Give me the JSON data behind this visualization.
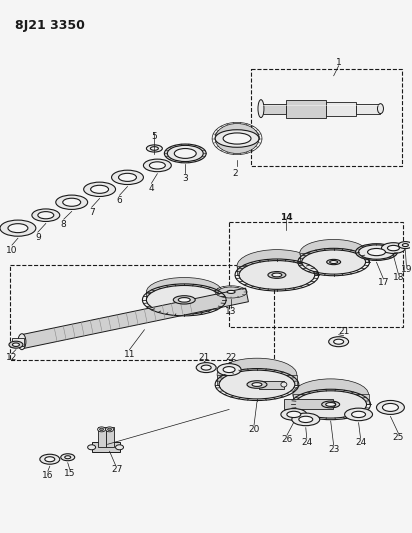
{
  "title": "8J21 3350",
  "bg_color": "#f5f5f5",
  "line_color": "#1a1a1a",
  "fill_light": "#e8e8e8",
  "fill_mid": "#d0d0d0",
  "fill_dark": "#b0b0b0",
  "title_fontsize": 9,
  "label_fontsize": 6.5,
  "fig_width": 4.12,
  "fig_height": 5.33,
  "dpi": 100
}
